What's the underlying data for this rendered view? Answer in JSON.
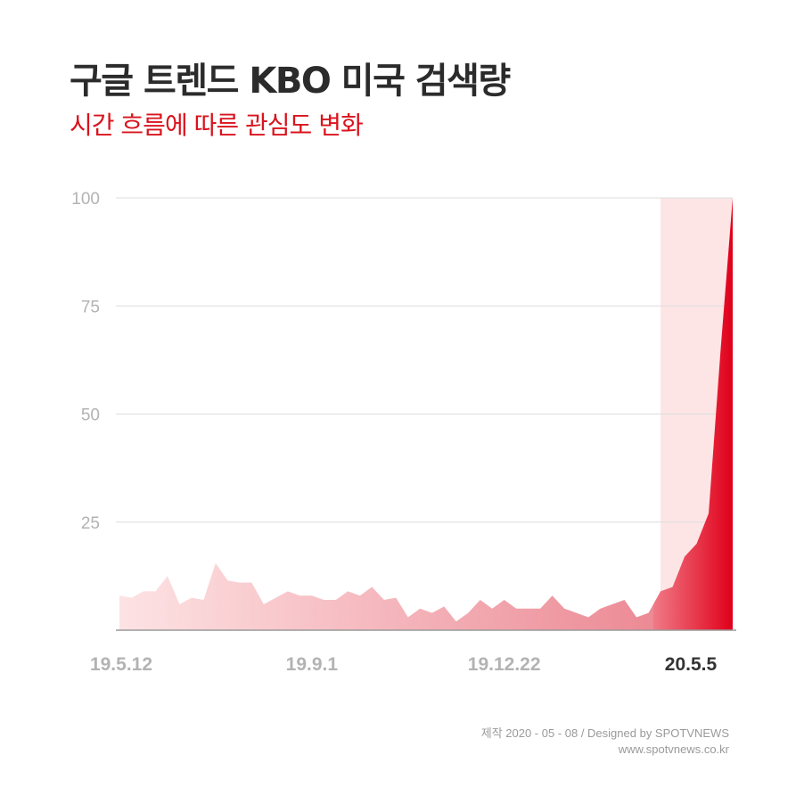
{
  "header": {
    "title": "구글 트렌드 KBO 미국 검색량",
    "subtitle": "시간 흐름에 따른 관심도 변화"
  },
  "footer": {
    "credit": "제작 2020 - 05 - 08 / Designed by SPOTVNEWS",
    "url": "www.spotvnews.co.kr"
  },
  "chart_data": {
    "type": "area",
    "ylim": [
      0,
      100
    ],
    "yticks": [
      25,
      50,
      75,
      100
    ],
    "grid": true,
    "xtick_labels": [
      "19.5.12",
      "19.9.1",
      "19.12.22",
      "20.5.5"
    ],
    "xtick_index": [
      0,
      16,
      32,
      51
    ],
    "highlight_label": "20.5.5",
    "highlight_start_index": 45,
    "values": [
      8,
      7.5,
      9,
      9,
      12.5,
      6,
      7.5,
      7,
      15.5,
      11.5,
      11,
      11,
      6,
      7.5,
      9,
      8,
      8,
      7,
      7,
      9,
      8,
      10,
      7,
      7.5,
      3,
      5,
      4,
      5.5,
      2,
      4,
      7,
      5,
      7,
      5,
      5,
      5,
      8,
      5,
      4,
      3,
      5,
      6,
      7,
      3,
      4,
      9,
      10,
      17,
      20,
      27,
      65,
      100
    ],
    "colors": {
      "area_start": "#fde3e4",
      "area_end": "#ec8a95",
      "highlight_start": "#f07a86",
      "highlight_end": "#e0001a",
      "highlight_band": "#fde5e6",
      "grid": "#dddddd",
      "tick": "#b3b3b3",
      "tick_emphasis": "#333333"
    }
  }
}
